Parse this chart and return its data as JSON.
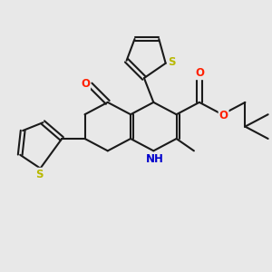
{
  "bg_color": "#e8e8e8",
  "bond_color": "#1a1a1a",
  "bond_width": 1.5,
  "atom_colors": {
    "S": "#b8b800",
    "O": "#ff2000",
    "N": "#0000cc",
    "C": "#1a1a1a"
  },
  "font_size_atom": 8.5,
  "figsize": [
    3.0,
    3.0
  ],
  "dpi": 100
}
